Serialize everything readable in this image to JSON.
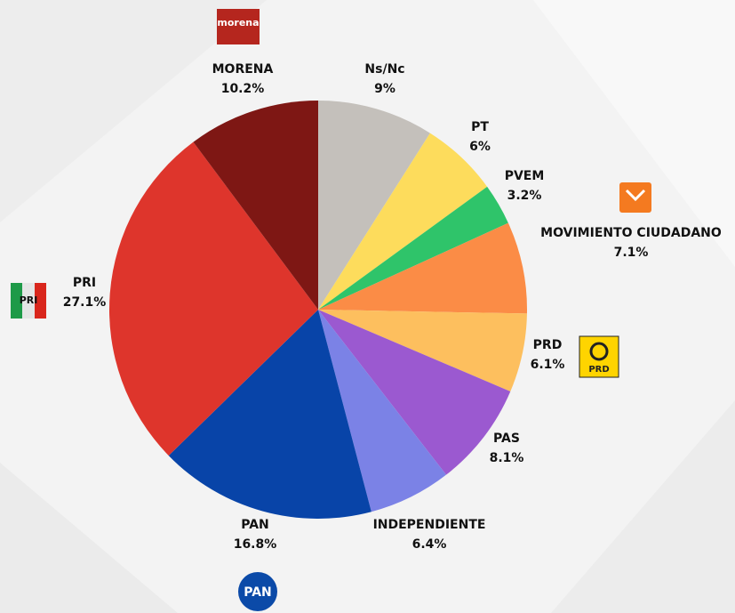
{
  "chart_data": {
    "type": "pie",
    "categories": [
      "Ns/Nc",
      "PT",
      "PVEM",
      "MOVIMIENTO CIUDADANO",
      "PRD",
      "PAS",
      "INDEPENDIENTE",
      "PAN",
      "PRI",
      "MORENA"
    ],
    "values": [
      9,
      6,
      3.2,
      7.1,
      6.1,
      8.1,
      6.4,
      16.8,
      27.1,
      10.2
    ],
    "value_labels": [
      "9%",
      "6%",
      "3.2%",
      "7.1%",
      "6.1%",
      "8.1%",
      "6.4%",
      "16.8%",
      "27.1%",
      "10.2%"
    ],
    "colors": [
      "#c4c0bb",
      "#fddc5c",
      "#2fc46a",
      "#fb8c46",
      "#fdbf5e",
      "#9b59d0",
      "#7b82e6",
      "#0844a8",
      "#de352c",
      "#7e1714"
    ],
    "logos": [
      "morena",
      "PRI",
      "PAN",
      "PRD"
    ]
  }
}
